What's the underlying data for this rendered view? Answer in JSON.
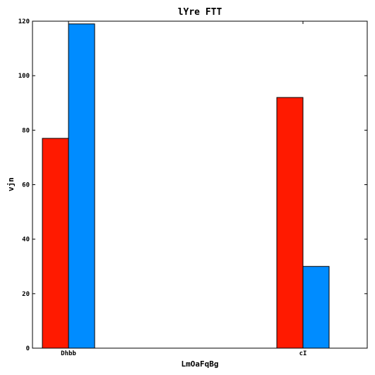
{
  "chart_data": {
    "type": "bar",
    "title": "lYre FTT",
    "xlabel": "LmOaFqBg",
    "ylabel": "vjn",
    "categories": [
      "Dhbb",
      "cI"
    ],
    "series": [
      {
        "values": [
          77,
          92
        ],
        "color": "#ff1a00"
      },
      {
        "values": [
          119,
          30
        ],
        "color": "#008cff"
      }
    ],
    "ylim": [
      0,
      120
    ],
    "yticks": [
      0,
      20,
      40,
      60,
      80,
      100,
      120
    ],
    "grid": false,
    "legend": "none"
  }
}
